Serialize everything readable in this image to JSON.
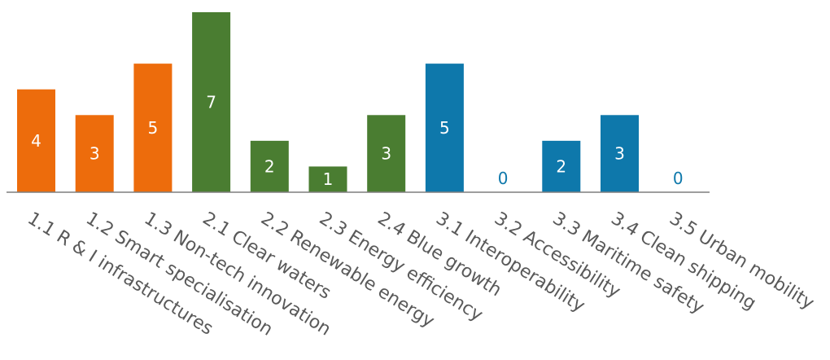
{
  "chart_data": {
    "type": "bar",
    "categories": [
      "1.1 R & I infrastructures",
      "1.2 Smart specialisation",
      "1.3 Non-tech innovation",
      "2.1 Clear waters",
      "2.2 Renewable energy",
      "2.3 Energy efficiency",
      "2.4 Blue growth",
      "3.1 Interoperability",
      "3.2 Accessibility",
      "3.3 Maritime safety",
      "3.4 Clean shipping",
      "3.5 Urban mobility"
    ],
    "values": [
      4,
      3,
      5,
      7,
      2,
      1,
      3,
      5,
      0,
      2,
      3,
      0
    ],
    "group_colors": [
      "#ed6c0c",
      "#ed6c0c",
      "#ed6c0c",
      "#4a7d31",
      "#4a7d31",
      "#4a7d31",
      "#4a7d31",
      "#0e78ab",
      "#0e78ab",
      "#0e78ab",
      "#0e78ab",
      "#0e78ab"
    ],
    "title": "",
    "xlabel": "",
    "ylabel": "",
    "ylim": [
      0,
      7
    ],
    "grid": false,
    "legend": "none",
    "data_labels": true
  }
}
